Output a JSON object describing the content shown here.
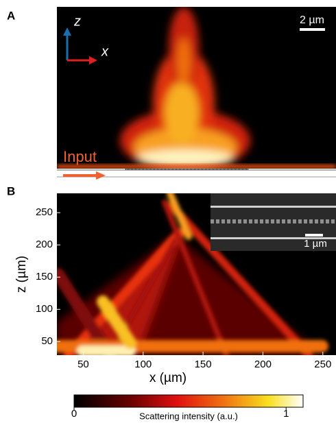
{
  "panel_a": {
    "label": "A",
    "axis_z": "z",
    "axis_x": "x",
    "scale_bar": "2 µm",
    "input_label": "Input"
  },
  "panel_b": {
    "label": "B",
    "xlabel": "x (µm)",
    "ylabel": "z (µm)",
    "xlim": [
      28,
      261
    ],
    "xticks": [
      50,
      100,
      150,
      200,
      250
    ],
    "ylim": [
      29,
      280
    ],
    "yticks": [
      50,
      100,
      150,
      200,
      250
    ],
    "inset_scale_bar": "1 µm"
  },
  "colorbar": {
    "title": "Scattering intensity (a.u.)",
    "lim": [
      0,
      1.08
    ],
    "ticks": [
      0,
      1
    ]
  }
}
